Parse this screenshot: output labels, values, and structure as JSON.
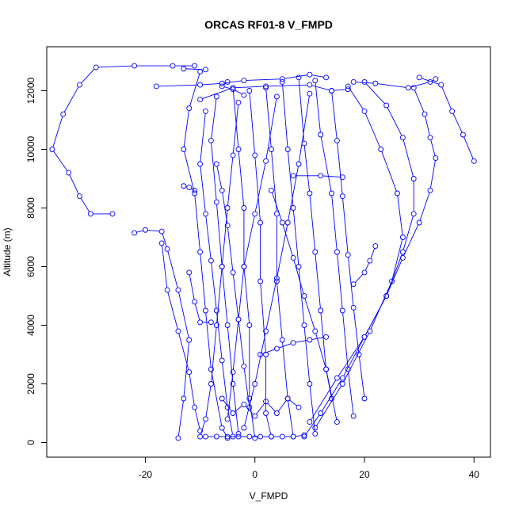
{
  "chart_data": {
    "type": "scatter",
    "title": "ORCAS RF01-8 V_FMPD",
    "xlabel": "V_FMPD",
    "ylabel": "Altitude (m)",
    "xlim": [
      -38,
      43
    ],
    "ylim": [
      -500,
      13500
    ],
    "x_ticks": [
      -20,
      0,
      20,
      40
    ],
    "x_tick_labels": [
      "-20",
      "0",
      "20",
      "40"
    ],
    "y_ticks": [
      0,
      2000,
      4000,
      6000,
      8000,
      10000,
      12000
    ],
    "y_tick_labels": [
      "0",
      "2000",
      "4000",
      "6000",
      "8000",
      "10000",
      "12000"
    ],
    "grid": false,
    "legend": "none",
    "colors": {
      "series": "#0000ff",
      "frame": "#000000"
    },
    "series": [
      {
        "points": [
          [
            -14,
            150
          ],
          [
            -13,
            1500
          ],
          [
            -12,
            3500
          ],
          [
            -14,
            5200
          ],
          [
            -16,
            6600
          ],
          [
            -17,
            7200
          ],
          [
            -20,
            7250
          ],
          [
            -22,
            7150
          ]
        ]
      },
      {
        "points": [
          [
            -26,
            7800
          ],
          [
            -30,
            7800
          ],
          [
            -32,
            8400
          ],
          [
            -34,
            9200
          ],
          [
            -37,
            10000
          ],
          [
            -35,
            11200
          ],
          [
            -32,
            12200
          ],
          [
            -29,
            12800
          ],
          [
            -22,
            12850
          ],
          [
            -15,
            12850
          ],
          [
            -11,
            12850
          ]
        ]
      },
      {
        "points": [
          [
            -13,
            12750
          ],
          [
            -9,
            12720
          ]
        ]
      },
      {
        "points": [
          [
            -18,
            12150
          ],
          [
            -10,
            12200
          ],
          [
            -6,
            12250
          ],
          [
            -2,
            12350
          ],
          [
            5,
            12400
          ],
          [
            10,
            12550
          ],
          [
            13,
            12450
          ]
        ]
      },
      {
        "points": [
          [
            -10,
            11700
          ],
          [
            -4,
            12100
          ],
          [
            2,
            12150
          ],
          [
            10,
            12200
          ],
          [
            14,
            12000
          ],
          [
            17,
            12050
          ]
        ]
      },
      {
        "points": [
          [
            -5,
            12300
          ],
          [
            -6,
            12150
          ],
          [
            -4,
            12050
          ],
          [
            -2,
            11850
          ]
        ]
      },
      {
        "points": [
          [
            18,
            12300
          ],
          [
            22,
            12250
          ],
          [
            28,
            12100
          ],
          [
            32,
            12300
          ],
          [
            33,
            12400
          ]
        ]
      },
      {
        "points": [
          [
            30,
            12450
          ],
          [
            34,
            12200
          ],
          [
            36,
            11300
          ],
          [
            38,
            10500
          ],
          [
            40,
            9600
          ]
        ]
      },
      {
        "points": [
          [
            -13,
            8750
          ],
          [
            -12,
            8700
          ],
          [
            -11,
            8600
          ]
        ]
      },
      {
        "points": [
          [
            7,
            9100
          ],
          [
            12,
            9100
          ],
          [
            16,
            9050
          ]
        ]
      },
      {
        "points": [
          [
            -10,
            12650
          ],
          [
            -12,
            11400
          ],
          [
            -13,
            10000
          ],
          [
            -11,
            8500
          ],
          [
            -10,
            6500
          ],
          [
            -9,
            4500
          ],
          [
            -8,
            2500
          ],
          [
            -6,
            500
          ],
          [
            -5,
            150
          ]
        ]
      },
      {
        "points": [
          [
            -7,
            11800
          ],
          [
            -8,
            10300
          ],
          [
            -7,
            8200
          ],
          [
            -6,
            6000
          ],
          [
            -5,
            4000
          ],
          [
            -4,
            2000
          ],
          [
            -3,
            300
          ]
        ]
      },
      {
        "points": [
          [
            -4,
            12100
          ],
          [
            -3,
            10000
          ],
          [
            -2,
            8000
          ],
          [
            -2,
            6000
          ],
          [
            -1,
            4000
          ],
          [
            -1,
            1500
          ],
          [
            0,
            150
          ]
        ]
      },
      {
        "points": [
          [
            -1,
            12000
          ],
          [
            0,
            9800
          ],
          [
            1,
            7500
          ],
          [
            1,
            5500
          ],
          [
            2,
            3000
          ],
          [
            2,
            1000
          ],
          [
            3,
            200
          ]
        ]
      },
      {
        "points": [
          [
            2,
            12100
          ],
          [
            3,
            10000
          ],
          [
            4,
            7800
          ],
          [
            4,
            5500
          ],
          [
            5,
            3500
          ],
          [
            6,
            1500
          ],
          [
            7,
            200
          ]
        ]
      },
      {
        "points": [
          [
            5,
            12300
          ],
          [
            6,
            10000
          ],
          [
            7,
            8000
          ],
          [
            8,
            6000
          ],
          [
            9,
            4000
          ],
          [
            10,
            2000
          ],
          [
            11,
            300
          ]
        ]
      },
      {
        "points": [
          [
            8,
            12450
          ],
          [
            9,
            10200
          ],
          [
            10,
            8500
          ],
          [
            11,
            6500
          ],
          [
            12,
            4500
          ],
          [
            13,
            2500
          ],
          [
            15,
            700
          ]
        ]
      },
      {
        "points": [
          [
            11,
            12350
          ],
          [
            12,
            10500
          ],
          [
            14,
            8500
          ],
          [
            15,
            6500
          ],
          [
            16,
            4500
          ],
          [
            17,
            2500
          ],
          [
            18,
            900
          ]
        ]
      },
      {
        "points": [
          [
            14,
            12000
          ],
          [
            15,
            10300
          ],
          [
            16,
            8400
          ],
          [
            17,
            6400
          ],
          [
            18,
            4600
          ],
          [
            19,
            3000
          ],
          [
            20,
            1500
          ]
        ]
      },
      {
        "points": [
          [
            17,
            12150
          ],
          [
            20,
            11300
          ],
          [
            23,
            10000
          ],
          [
            26,
            8500
          ],
          [
            27,
            7000
          ],
          [
            25,
            5500
          ],
          [
            21,
            3800
          ],
          [
            16,
            2000
          ],
          [
            11,
            500
          ]
        ]
      },
      {
        "points": [
          [
            20,
            12300
          ],
          [
            24,
            11500
          ],
          [
            27,
            10400
          ],
          [
            29,
            9000
          ],
          [
            29,
            7800
          ],
          [
            27,
            6500
          ],
          [
            24,
            5000
          ],
          [
            20,
            3600
          ],
          [
            15,
            2200
          ],
          [
            10,
            700
          ]
        ]
      },
      {
        "points": [
          [
            29,
            12100
          ],
          [
            31,
            11200
          ],
          [
            32,
            10400
          ],
          [
            33,
            9700
          ],
          [
            32,
            8600
          ],
          [
            30,
            7500
          ],
          [
            27,
            6300
          ],
          [
            24,
            5000
          ],
          [
            20,
            3600
          ],
          [
            16,
            2200
          ],
          [
            12,
            1000
          ],
          [
            9,
            200
          ]
        ]
      },
      {
        "points": [
          [
            -9,
            11300
          ],
          [
            -10,
            9500
          ],
          [
            -9,
            7800
          ],
          [
            -8,
            6200
          ],
          [
            -7,
            4500
          ],
          [
            -6,
            2800
          ],
          [
            -5,
            1200
          ],
          [
            -4,
            200
          ]
        ]
      },
      {
        "points": [
          [
            -3,
            11600
          ],
          [
            -4,
            9800
          ],
          [
            -5,
            8000
          ],
          [
            -6,
            6000
          ],
          [
            -7,
            4000
          ],
          [
            -8,
            2000
          ],
          [
            -9,
            800
          ],
          [
            -10,
            200
          ]
        ]
      },
      {
        "points": [
          [
            4,
            11800
          ],
          [
            2,
            9600
          ],
          [
            0,
            7800
          ],
          [
            -2,
            6000
          ],
          [
            -3,
            4200
          ],
          [
            -4,
            2400
          ],
          [
            -5,
            800
          ]
        ]
      },
      {
        "points": [
          [
            10,
            11900
          ],
          [
            8,
            9500
          ],
          [
            6,
            7500
          ],
          [
            4,
            5600
          ],
          [
            2,
            3800
          ],
          [
            0,
            2000
          ],
          [
            -2,
            500
          ]
        ]
      },
      {
        "points": [
          [
            -7,
            9500
          ],
          [
            -6,
            8600
          ],
          [
            -5,
            7400
          ],
          [
            -4,
            5800
          ],
          [
            -3,
            4200
          ],
          [
            -2,
            2600
          ],
          [
            -1,
            1200
          ]
        ]
      },
      {
        "points": [
          [
            3,
            8600
          ],
          [
            5,
            7500
          ],
          [
            7,
            6300
          ],
          [
            9,
            5000
          ],
          [
            11,
            3800
          ],
          [
            13,
            2500
          ],
          [
            14,
            1500
          ]
        ]
      },
      {
        "points": [
          [
            -17,
            6800
          ],
          [
            -16,
            5200
          ],
          [
            -14,
            3800
          ],
          [
            -12,
            2400
          ],
          [
            -11,
            1200
          ],
          [
            -10,
            400
          ]
        ]
      },
      {
        "points": [
          [
            -12,
            5800
          ],
          [
            -11,
            4800
          ],
          [
            -10,
            4100
          ],
          [
            -8,
            4100
          ]
        ]
      },
      {
        "points": [
          [
            -6,
            1500
          ],
          [
            -4,
            1000
          ],
          [
            -2,
            1300
          ],
          [
            0,
            900
          ],
          [
            2,
            1400
          ],
          [
            4,
            1000
          ],
          [
            6,
            1500
          ],
          [
            8,
            1200
          ]
        ]
      },
      {
        "points": [
          [
            -9,
            200
          ],
          [
            -7,
            200
          ],
          [
            -5,
            200
          ],
          [
            -3,
            200
          ],
          [
            -1,
            200
          ],
          [
            1,
            200
          ],
          [
            3,
            200
          ],
          [
            5,
            200
          ],
          [
            7,
            200
          ],
          [
            9,
            250
          ]
        ]
      },
      {
        "points": [
          [
            1,
            3000
          ],
          [
            4,
            3200
          ],
          [
            7,
            3400
          ],
          [
            10,
            3500
          ],
          [
            13,
            3600
          ]
        ]
      },
      {
        "points": [
          [
            18,
            5400
          ],
          [
            20,
            5800
          ],
          [
            21,
            6200
          ],
          [
            22,
            6700
          ]
        ]
      }
    ]
  }
}
